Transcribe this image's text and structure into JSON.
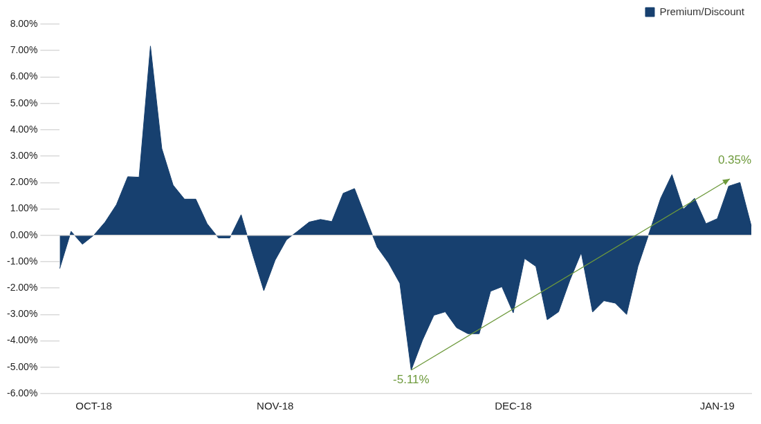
{
  "chart_data": {
    "type": "area",
    "categories": [
      null,
      null,
      null,
      "OCT-18",
      null,
      null,
      null,
      null,
      null,
      null,
      null,
      null,
      null,
      null,
      null,
      null,
      null,
      null,
      null,
      "NOV-18",
      null,
      null,
      null,
      null,
      null,
      null,
      null,
      null,
      null,
      null,
      null,
      null,
      null,
      null,
      null,
      null,
      null,
      null,
      null,
      null,
      "DEC-18",
      null,
      null,
      null,
      null,
      null,
      null,
      null,
      null,
      null,
      null,
      null,
      null,
      null,
      null,
      null,
      null,
      null,
      "JAN-19",
      null,
      null,
      null
    ],
    "series": [
      {
        "name": "Premium/Discount",
        "color": "#17406f",
        "values": [
          -1.26,
          0.15,
          -0.34,
          0.0,
          0.5,
          1.16,
          2.22,
          2.2,
          7.17,
          3.29,
          1.9,
          1.37,
          1.37,
          0.44,
          -0.1,
          -0.1,
          0.78,
          -0.7,
          -2.1,
          -0.94,
          -0.17,
          0.16,
          0.5,
          0.6,
          0.52,
          1.59,
          1.77,
          0.66,
          -0.45,
          -1.05,
          -1.82,
          -5.11,
          -3.97,
          -3.03,
          -2.9,
          -3.5,
          -3.73,
          -3.73,
          -2.12,
          -1.95,
          -2.94,
          -0.88,
          -1.18,
          -3.2,
          -2.9,
          -1.7,
          -0.66,
          -2.91,
          -2.48,
          -2.57,
          -3.0,
          -1.18,
          0.1,
          1.4,
          2.3,
          0.99,
          1.4,
          0.44,
          0.63,
          1.86,
          2.0,
          0.35
        ]
      }
    ],
    "ylim": [
      -6,
      8
    ],
    "yticks": [
      {
        "value": -6,
        "label": "-6.00%"
      },
      {
        "value": -5,
        "label": "-5.00%"
      },
      {
        "value": -4,
        "label": "-4.00%"
      },
      {
        "value": -3,
        "label": "-3.00%"
      },
      {
        "value": -2,
        "label": "-2.00%"
      },
      {
        "value": -1,
        "label": "-1.00%"
      },
      {
        "value": 0,
        "label": "0.00%"
      },
      {
        "value": 1,
        "label": "1.00%"
      },
      {
        "value": 2,
        "label": "2.00%"
      },
      {
        "value": 3,
        "label": "3.00%"
      },
      {
        "value": 4,
        "label": "4.00%"
      },
      {
        "value": 5,
        "label": "5.00%"
      },
      {
        "value": 6,
        "label": "6.00%"
      },
      {
        "value": 7,
        "label": "7.00%"
      },
      {
        "value": 8,
        "label": "8.00%"
      }
    ],
    "grid": false,
    "legend": "top right",
    "marker": "none",
    "ref_lines": [
      {
        "axis": "y",
        "value": 0,
        "color": "#d9d9d9"
      }
    ],
    "annotations": [
      {
        "text": "-5.11%",
        "y": -5.11
      },
      "0.35%"
    ]
  }
}
